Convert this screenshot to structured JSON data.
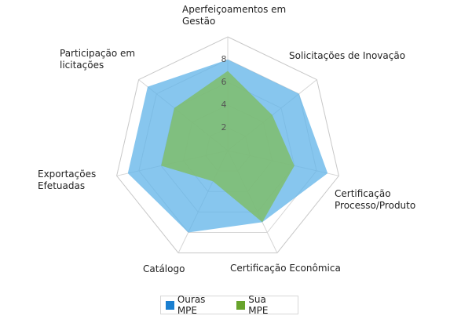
{
  "chart_data": {
    "type": "radar",
    "categories": [
      "Aperfeiçoamentos em Gestão",
      "Solicitações de Inovação",
      "Certificação Processo/Produto",
      "Certificação Econômica",
      "Catálogo",
      "Exportações Efetuadas",
      "Participação em licitações"
    ],
    "category_lines": [
      [
        "Aperfeiçoamentos em",
        "Gestão"
      ],
      [
        "Solicitações de Inovação"
      ],
      [
        "Certificação",
        "Processo/Produto"
      ],
      [
        "Certificação Econômica"
      ],
      [
        "Catálogo"
      ],
      [
        "Exportações",
        "Efetuadas"
      ],
      [
        "Participação em",
        "licitações"
      ]
    ],
    "ticks": [
      "2",
      "4",
      "6",
      "8"
    ],
    "tick_values": [
      2,
      4,
      6,
      8
    ],
    "rlim": [
      0,
      10
    ],
    "series": [
      {
        "name": "Ouras MPE",
        "color": "#5fb3e8",
        "values": [
          8,
          8,
          9,
          7,
          8,
          9,
          9
        ]
      },
      {
        "name": "Sua MPE",
        "color": "#7fbd6b",
        "values": [
          7,
          5,
          6,
          7,
          3,
          6,
          6
        ]
      }
    ],
    "grid": true,
    "legend_position": "bottom"
  }
}
